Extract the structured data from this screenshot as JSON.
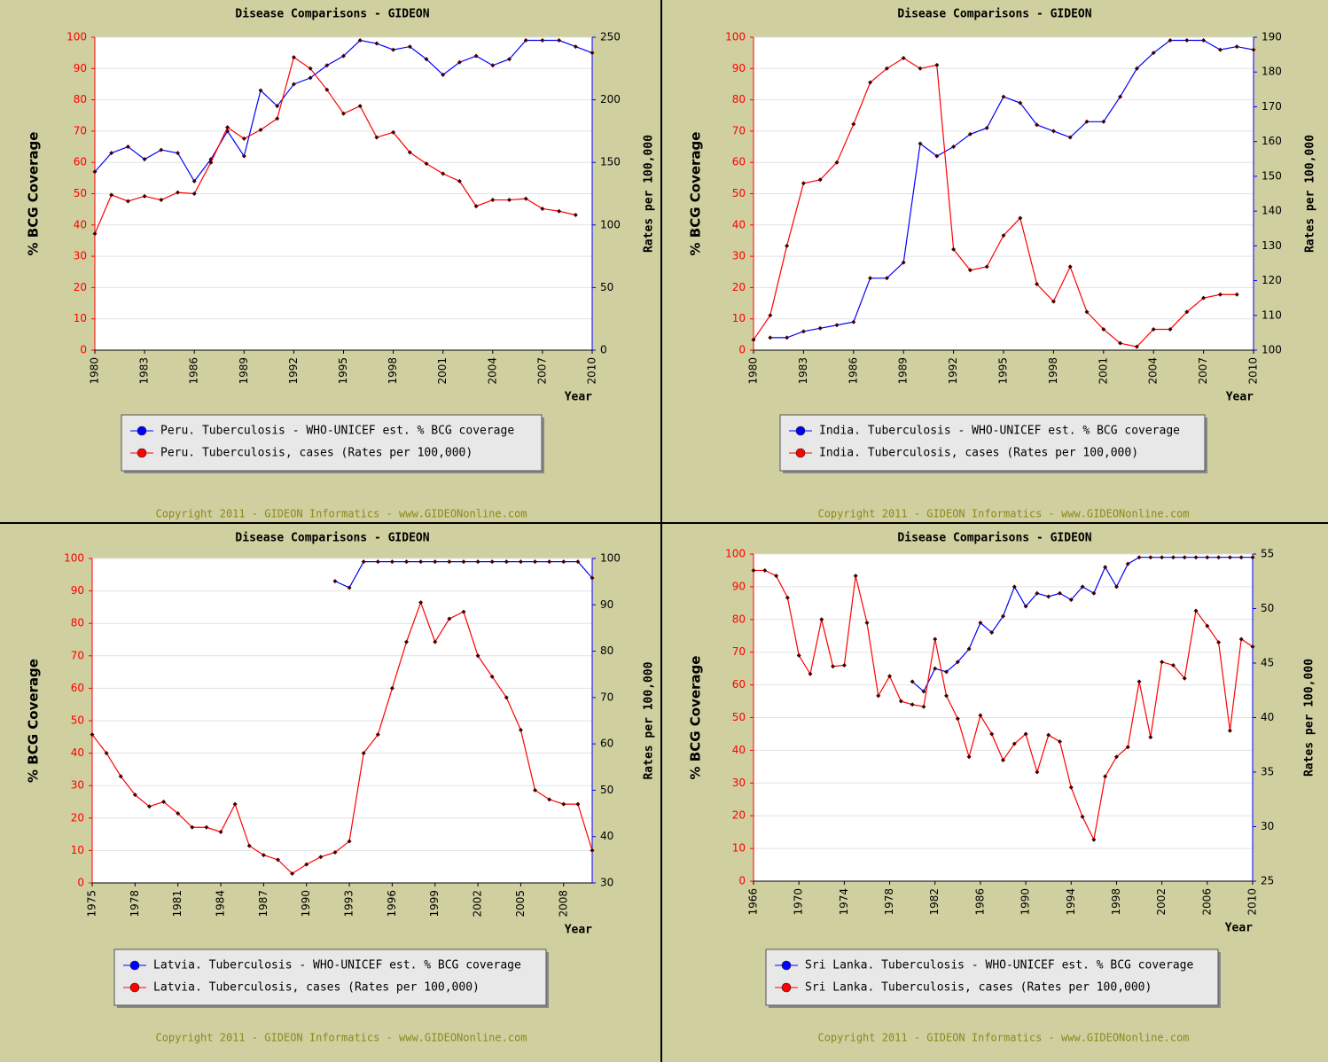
{
  "chart_data": [
    {
      "type": "line",
      "title": "Disease Comparisons - GIDEON",
      "ylabel": "% BCG Coverage",
      "y2label": "Rates per 100,000",
      "xlabel": "Year",
      "footer": "Copyright 2011 - GIDEON Informatics - www.GIDEONonline.com",
      "x": [
        1980,
        1981,
        1982,
        1983,
        1984,
        1985,
        1986,
        1987,
        1988,
        1989,
        1990,
        1991,
        1992,
        1993,
        1994,
        1995,
        1996,
        1997,
        1998,
        1999,
        2000,
        2001,
        2002,
        2003,
        2004,
        2005,
        2006,
        2007,
        2008,
        2009,
        2010
      ],
      "xlim": [
        1980,
        2010
      ],
      "xticks": [
        1980,
        1983,
        1986,
        1989,
        1992,
        1995,
        1998,
        2001,
        2004,
        2007,
        2010
      ],
      "ylim": [
        0,
        100
      ],
      "yticks": [
        0,
        10,
        20,
        30,
        40,
        50,
        60,
        70,
        80,
        90,
        100
      ],
      "y2lim": [
        0,
        250
      ],
      "y2ticks": [
        0,
        50,
        100,
        150,
        200,
        250
      ],
      "grid": true,
      "series": [
        {
          "name": "Peru. Tuberculosis - WHO-UNICEF est. % BCG coverage",
          "color": "#0000ff",
          "values": [
            57,
            63,
            65,
            61,
            64,
            63,
            54,
            61,
            70,
            62,
            83,
            78,
            85,
            87,
            91,
            94,
            99,
            98,
            96,
            97,
            93,
            88,
            92,
            94,
            91,
            93,
            99,
            99,
            99,
            97,
            95
          ]
        },
        {
          "name": "Peru. Tuberculosis, cases (Rates per 100,000)",
          "color": "#ff0000",
          "axis": "y2",
          "values": [
            93,
            124,
            119,
            123,
            120,
            126,
            125,
            150,
            178,
            169,
            176,
            185,
            234,
            225,
            208,
            189,
            195,
            170,
            174,
            158,
            149,
            141,
            135,
            115,
            120,
            120,
            121,
            113,
            111,
            108,
            null
          ]
        }
      ]
    },
    {
      "type": "line",
      "title": "Disease Comparisons - GIDEON",
      "ylabel": "% BCG Coverage",
      "y2label": "Rates per 100,000",
      "xlabel": "Year",
      "footer": "Copyright 2011 - GIDEON Informatics - www.GIDEONonline.com",
      "x": [
        1980,
        1981,
        1982,
        1983,
        1984,
        1985,
        1986,
        1987,
        1988,
        1989,
        1990,
        1991,
        1992,
        1993,
        1994,
        1995,
        1996,
        1997,
        1998,
        1999,
        2000,
        2001,
        2002,
        2003,
        2004,
        2005,
        2006,
        2007,
        2008,
        2009,
        2010
      ],
      "xlim": [
        1980,
        2010
      ],
      "xticks": [
        1980,
        1983,
        1986,
        1989,
        1992,
        1995,
        1998,
        2001,
        2004,
        2007,
        2010
      ],
      "ylim": [
        0,
        100
      ],
      "yticks": [
        0,
        10,
        20,
        30,
        40,
        50,
        60,
        70,
        80,
        90,
        100
      ],
      "y2lim": [
        100,
        190
      ],
      "y2ticks": [
        100,
        110,
        120,
        130,
        140,
        150,
        160,
        170,
        180,
        190
      ],
      "grid": true,
      "series": [
        {
          "name": "India. Tuberculosis - WHO-UNICEF est. % BCG coverage",
          "color": "#0000ff",
          "values": [
            null,
            4,
            4,
            6,
            7,
            8,
            9,
            23,
            23,
            28,
            66,
            62,
            65,
            69,
            71,
            81,
            79,
            72,
            70,
            68,
            73,
            73,
            81,
            90,
            95,
            99,
            99,
            99,
            96,
            97,
            96
          ]
        },
        {
          "name": "India. Tuberculosis, cases (Rates per 100,000)",
          "color": "#ff0000",
          "axis": "y2",
          "values": [
            103,
            110,
            130,
            148,
            149,
            154,
            165,
            177,
            181,
            184,
            181,
            182,
            129,
            123,
            124,
            133,
            138,
            119,
            114,
            124,
            111,
            106,
            102,
            101,
            106,
            106,
            111,
            115,
            116,
            116,
            null
          ]
        }
      ]
    },
    {
      "type": "line",
      "title": "Disease Comparisons - GIDEON",
      "ylabel": "% BCG Coverage",
      "y2label": "Rates per 100,000",
      "xlabel": "Year",
      "footer": "Copyright 2011 - GIDEON Informatics - www.GIDEONonline.com",
      "x": [
        1975,
        1976,
        1977,
        1978,
        1979,
        1980,
        1981,
        1982,
        1983,
        1984,
        1985,
        1986,
        1987,
        1988,
        1989,
        1990,
        1991,
        1992,
        1993,
        1994,
        1995,
        1996,
        1997,
        1998,
        1999,
        2000,
        2001,
        2002,
        2003,
        2004,
        2005,
        2006,
        2007,
        2008,
        2009,
        2010
      ],
      "xlim": [
        1975,
        2010
      ],
      "xticks": [
        1975,
        1978,
        1981,
        1984,
        1987,
        1990,
        1993,
        1996,
        1999,
        2002,
        2005,
        2008
      ],
      "ylim": [
        0,
        100
      ],
      "yticks": [
        0,
        10,
        20,
        30,
        40,
        50,
        60,
        70,
        80,
        90,
        100
      ],
      "y2lim": [
        30,
        100
      ],
      "y2ticks": [
        30,
        40,
        50,
        60,
        70,
        80,
        90,
        100
      ],
      "grid": true,
      "series": [
        {
          "name": "Latvia. Tuberculosis - WHO-UNICEF est. % BCG coverage",
          "color": "#0000ff",
          "values": [
            null,
            null,
            null,
            null,
            null,
            null,
            null,
            null,
            null,
            null,
            null,
            null,
            null,
            null,
            null,
            null,
            null,
            93,
            91,
            99,
            99,
            99,
            99,
            99,
            99,
            99,
            99,
            99,
            99,
            99,
            99,
            99,
            99,
            99,
            99,
            94
          ]
        },
        {
          "name": "Latvia. Tuberculosis, cases (Rates per 100,000)",
          "color": "#ff0000",
          "axis": "y2",
          "values": [
            62,
            58,
            53,
            49,
            46.5,
            47.5,
            45,
            42,
            42,
            41,
            47,
            38,
            36,
            35,
            32,
            34,
            35.6,
            36.6,
            39,
            58,
            62,
            72,
            82,
            90.5,
            82,
            87,
            88.5,
            79,
            74.5,
            70,
            63,
            50,
            48,
            47,
            47,
            37
          ]
        }
      ]
    },
    {
      "type": "line",
      "title": "Disease Comparisons - GIDEON",
      "ylabel": "% BCG Coverage",
      "y2label": "Rates per 100,000",
      "xlabel": "Year",
      "footer": "Copyright 2011 - GIDEON Informatics - www.GIDEONonline.com",
      "x": [
        1966,
        1967,
        1968,
        1969,
        1970,
        1971,
        1972,
        1973,
        1974,
        1975,
        1976,
        1977,
        1978,
        1979,
        1980,
        1981,
        1982,
        1983,
        1984,
        1985,
        1986,
        1987,
        1988,
        1989,
        1990,
        1991,
        1992,
        1993,
        1994,
        1995,
        1996,
        1997,
        1998,
        1999,
        2000,
        2001,
        2002,
        2003,
        2004,
        2005,
        2006,
        2007,
        2008,
        2009,
        2010
      ],
      "xlim": [
        1966,
        2010
      ],
      "xticks": [
        1966,
        1970,
        1974,
        1978,
        1982,
        1986,
        1990,
        1994,
        1998,
        2002,
        2006,
        2010
      ],
      "ylim": [
        0,
        100
      ],
      "yticks": [
        0,
        10,
        20,
        30,
        40,
        50,
        60,
        70,
        80,
        90,
        100
      ],
      "y2lim": [
        25,
        55
      ],
      "y2ticks": [
        25,
        30,
        35,
        40,
        45,
        50,
        55
      ],
      "grid": true,
      "series": [
        {
          "name": "Sri Lanka. Tuberculosis - WHO-UNICEF est. % BCG coverage",
          "color": "#0000ff",
          "values": [
            null,
            null,
            null,
            null,
            null,
            null,
            null,
            null,
            null,
            null,
            null,
            null,
            null,
            null,
            61,
            58,
            65,
            64,
            67,
            71,
            79,
            76,
            81,
            90,
            84,
            88,
            87,
            88,
            86,
            90,
            88,
            96,
            90,
            97,
            99,
            99,
            99,
            99,
            99,
            99,
            99,
            99,
            99,
            99,
            99
          ]
        },
        {
          "name": "Sri Lanka. Tuberculosis, cases (Rates per 100,000)",
          "color": "#ff0000",
          "axis": "y2",
          "values": [
            53.5,
            53.5,
            53,
            51,
            45.7,
            44,
            49,
            44.7,
            44.8,
            53,
            48.7,
            42,
            43.8,
            41.5,
            41.2,
            41,
            47.2,
            42,
            39.9,
            36.4,
            40.2,
            38.5,
            36.1,
            37.6,
            38.5,
            35,
            38.4,
            37.8,
            33.6,
            30.9,
            28.8,
            34.6,
            36.4,
            37.3,
            43.3,
            38.2,
            45.1,
            44.8,
            43.6,
            49.8,
            48.4,
            46.9,
            38.8,
            47.2,
            46.5
          ]
        }
      ]
    }
  ]
}
